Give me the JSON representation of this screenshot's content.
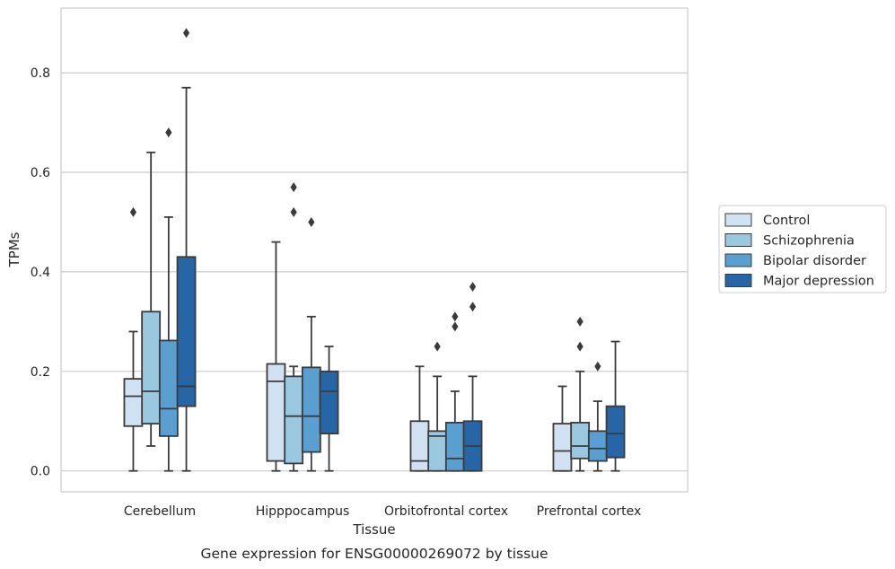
{
  "chart_data": {
    "type": "box",
    "title": "",
    "caption": "Gene expression for ENSG00000269072 by tissue",
    "xlabel": "Tissue",
    "ylabel": "TPMs",
    "ylim": [
      -0.042,
      0.93
    ],
    "yticks": [
      "0.0",
      "0.2",
      "0.4",
      "0.6",
      "0.8"
    ],
    "ytick_values": [
      0.0,
      0.2,
      0.4,
      0.6,
      0.8
    ],
    "grid": "horizontal",
    "legend_position": "right",
    "categories": [
      "Cerebellum",
      "Hipppocampus",
      "Orbitofrontal cortex",
      "Prefrontal cortex"
    ],
    "series": [
      {
        "name": "Control",
        "color": "#d0e1f2",
        "boxes": [
          {
            "whislo": 0.0,
            "q1": 0.09,
            "med": 0.15,
            "q3": 0.185,
            "whishi": 0.28,
            "fliers": [
              0.52
            ]
          },
          {
            "whislo": 0.0,
            "q1": 0.02,
            "med": 0.18,
            "q3": 0.215,
            "whishi": 0.46,
            "fliers": []
          },
          {
            "whislo": 0.0,
            "q1": 0.0,
            "med": 0.02,
            "q3": 0.1,
            "whishi": 0.21,
            "fliers": []
          },
          {
            "whislo": 0.0,
            "q1": 0.0,
            "med": 0.04,
            "q3": 0.095,
            "whishi": 0.17,
            "fliers": []
          }
        ]
      },
      {
        "name": "Schizophrenia",
        "color": "#9ac8e0",
        "boxes": [
          {
            "whislo": 0.05,
            "q1": 0.095,
            "med": 0.16,
            "q3": 0.32,
            "whishi": 0.64,
            "fliers": []
          },
          {
            "whislo": 0.0,
            "q1": 0.015,
            "med": 0.11,
            "q3": 0.19,
            "whishi": 0.21,
            "fliers": [
              0.52,
              0.57
            ]
          },
          {
            "whislo": 0.0,
            "q1": 0.0,
            "med": 0.07,
            "q3": 0.08,
            "whishi": 0.19,
            "fliers": [
              0.25
            ]
          },
          {
            "whislo": 0.0,
            "q1": 0.025,
            "med": 0.05,
            "q3": 0.097,
            "whishi": 0.2,
            "fliers": [
              0.25,
              0.3
            ]
          }
        ]
      },
      {
        "name": "Bipolar disorder",
        "color": "#5a9fcf",
        "boxes": [
          {
            "whislo": 0.0,
            "q1": 0.07,
            "med": 0.125,
            "q3": 0.262,
            "whishi": 0.51,
            "fliers": [
              0.68
            ]
          },
          {
            "whislo": 0.0,
            "q1": 0.038,
            "med": 0.11,
            "q3": 0.208,
            "whishi": 0.31,
            "fliers": [
              0.5
            ]
          },
          {
            "whislo": 0.0,
            "q1": 0.0,
            "med": 0.025,
            "q3": 0.097,
            "whishi": 0.16,
            "fliers": [
              0.29,
              0.31
            ]
          },
          {
            "whislo": 0.0,
            "q1": 0.02,
            "med": 0.045,
            "q3": 0.08,
            "whishi": 0.14,
            "fliers": [
              0.21
            ]
          }
        ]
      },
      {
        "name": "Major depression",
        "color": "#2666a6",
        "boxes": [
          {
            "whislo": 0.0,
            "q1": 0.13,
            "med": 0.17,
            "q3": 0.43,
            "whishi": 0.77,
            "fliers": [
              0.88
            ]
          },
          {
            "whislo": 0.0,
            "q1": 0.075,
            "med": 0.16,
            "q3": 0.2,
            "whishi": 0.25,
            "fliers": []
          },
          {
            "whislo": 0.0,
            "q1": 0.0,
            "med": 0.05,
            "q3": 0.1,
            "whishi": 0.19,
            "fliers": [
              0.33,
              0.37
            ]
          },
          {
            "whislo": 0.0,
            "q1": 0.027,
            "med": 0.075,
            "q3": 0.13,
            "whishi": 0.26,
            "fliers": []
          }
        ]
      }
    ]
  }
}
